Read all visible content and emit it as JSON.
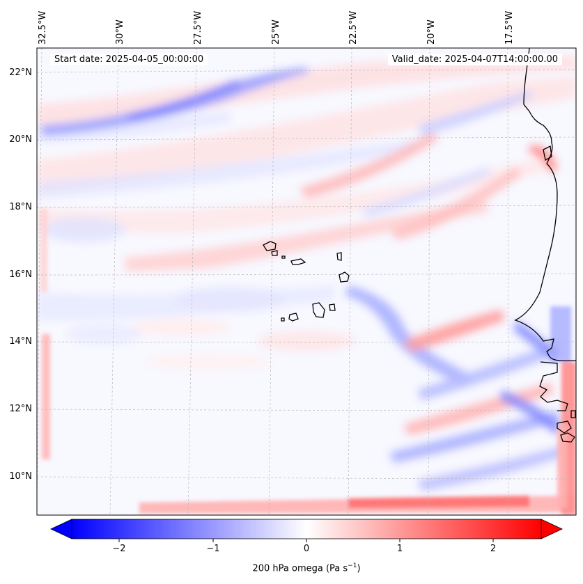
{
  "map": {
    "start_date": "Start date: 2025-04-05_00:00:00",
    "valid_date": "Valid_date: 2025-04-07T14:00:00.00",
    "lon_labels": [
      "32.5°W",
      "30°W",
      "27.5°W",
      "25°W",
      "22.5°W",
      "20°W",
      "17.5°W"
    ],
    "lat_labels": [
      "22°N",
      "20°N",
      "18°N",
      "16°N",
      "14°N",
      "12°N",
      "10°N"
    ],
    "colors": {
      "positive": "#ff0000",
      "negative": "#0000ff",
      "neutral": "#ffffff",
      "coast": "#000000",
      "grid": "#b0b0b0"
    }
  },
  "colorbar": {
    "ticks": [
      "−2",
      "−1",
      "0",
      "1",
      "2"
    ],
    "label": "200 hPa omega (Pa s",
    "label_sup": "−1",
    "label_end": ")",
    "min": -2.7,
    "max": 2.7
  }
}
